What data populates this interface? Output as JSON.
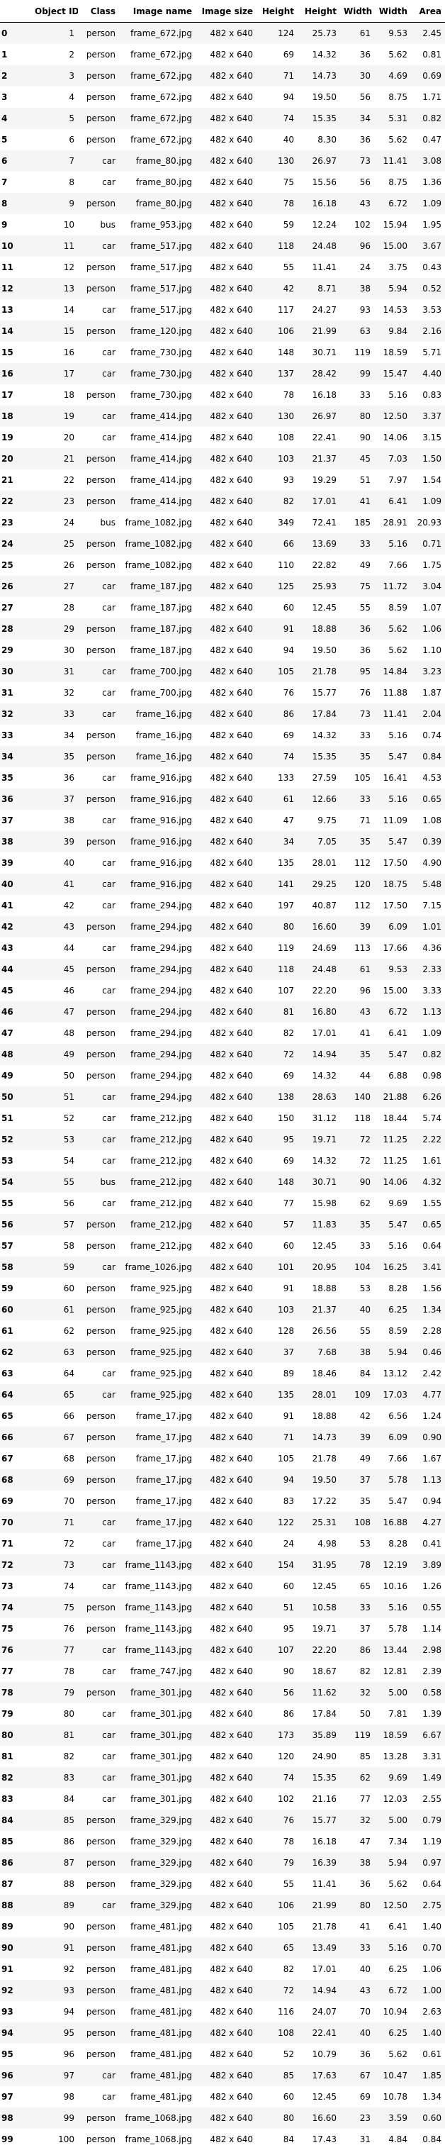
{
  "table": {
    "index_header": "",
    "columns": [
      "Object ID",
      "Class",
      "Image name",
      "Image size",
      "Height",
      "Height",
      "Width",
      "Width",
      "Area"
    ],
    "rows": [
      [
        "0",
        "1",
        "person",
        "frame_672.jpg",
        "482 x 640",
        "124",
        "25.73",
        "61",
        "9.53",
        "2.45"
      ],
      [
        "1",
        "2",
        "person",
        "frame_672.jpg",
        "482 x 640",
        "69",
        "14.32",
        "36",
        "5.62",
        "0.81"
      ],
      [
        "2",
        "3",
        "person",
        "frame_672.jpg",
        "482 x 640",
        "71",
        "14.73",
        "30",
        "4.69",
        "0.69"
      ],
      [
        "3",
        "4",
        "person",
        "frame_672.jpg",
        "482 x 640",
        "94",
        "19.50",
        "56",
        "8.75",
        "1.71"
      ],
      [
        "4",
        "5",
        "person",
        "frame_672.jpg",
        "482 x 640",
        "74",
        "15.35",
        "34",
        "5.31",
        "0.82"
      ],
      [
        "5",
        "6",
        "person",
        "frame_672.jpg",
        "482 x 640",
        "40",
        "8.30",
        "36",
        "5.62",
        "0.47"
      ],
      [
        "6",
        "7",
        "car",
        "frame_80.jpg",
        "482 x 640",
        "130",
        "26.97",
        "73",
        "11.41",
        "3.08"
      ],
      [
        "7",
        "8",
        "car",
        "frame_80.jpg",
        "482 x 640",
        "75",
        "15.56",
        "56",
        "8.75",
        "1.36"
      ],
      [
        "8",
        "9",
        "person",
        "frame_80.jpg",
        "482 x 640",
        "78",
        "16.18",
        "43",
        "6.72",
        "1.09"
      ],
      [
        "9",
        "10",
        "bus",
        "frame_953.jpg",
        "482 x 640",
        "59",
        "12.24",
        "102",
        "15.94",
        "1.95"
      ],
      [
        "10",
        "11",
        "car",
        "frame_517.jpg",
        "482 x 640",
        "118",
        "24.48",
        "96",
        "15.00",
        "3.67"
      ],
      [
        "11",
        "12",
        "person",
        "frame_517.jpg",
        "482 x 640",
        "55",
        "11.41",
        "24",
        "3.75",
        "0.43"
      ],
      [
        "12",
        "13",
        "person",
        "frame_517.jpg",
        "482 x 640",
        "42",
        "8.71",
        "38",
        "5.94",
        "0.52"
      ],
      [
        "13",
        "14",
        "car",
        "frame_517.jpg",
        "482 x 640",
        "117",
        "24.27",
        "93",
        "14.53",
        "3.53"
      ],
      [
        "14",
        "15",
        "person",
        "frame_120.jpg",
        "482 x 640",
        "106",
        "21.99",
        "63",
        "9.84",
        "2.16"
      ],
      [
        "15",
        "16",
        "car",
        "frame_730.jpg",
        "482 x 640",
        "148",
        "30.71",
        "119",
        "18.59",
        "5.71"
      ],
      [
        "16",
        "17",
        "car",
        "frame_730.jpg",
        "482 x 640",
        "137",
        "28.42",
        "99",
        "15.47",
        "4.40"
      ],
      [
        "17",
        "18",
        "person",
        "frame_730.jpg",
        "482 x 640",
        "78",
        "16.18",
        "33",
        "5.16",
        "0.83"
      ],
      [
        "18",
        "19",
        "car",
        "frame_414.jpg",
        "482 x 640",
        "130",
        "26.97",
        "80",
        "12.50",
        "3.37"
      ],
      [
        "19",
        "20",
        "car",
        "frame_414.jpg",
        "482 x 640",
        "108",
        "22.41",
        "90",
        "14.06",
        "3.15"
      ],
      [
        "20",
        "21",
        "person",
        "frame_414.jpg",
        "482 x 640",
        "103",
        "21.37",
        "45",
        "7.03",
        "1.50"
      ],
      [
        "21",
        "22",
        "person",
        "frame_414.jpg",
        "482 x 640",
        "93",
        "19.29",
        "51",
        "7.97",
        "1.54"
      ],
      [
        "22",
        "23",
        "person",
        "frame_414.jpg",
        "482 x 640",
        "82",
        "17.01",
        "41",
        "6.41",
        "1.09"
      ],
      [
        "23",
        "24",
        "bus",
        "frame_1082.jpg",
        "482 x 640",
        "349",
        "72.41",
        "185",
        "28.91",
        "20.93"
      ],
      [
        "24",
        "25",
        "person",
        "frame_1082.jpg",
        "482 x 640",
        "66",
        "13.69",
        "33",
        "5.16",
        "0.71"
      ],
      [
        "25",
        "26",
        "person",
        "frame_1082.jpg",
        "482 x 640",
        "110",
        "22.82",
        "49",
        "7.66",
        "1.75"
      ],
      [
        "26",
        "27",
        "car",
        "frame_187.jpg",
        "482 x 640",
        "125",
        "25.93",
        "75",
        "11.72",
        "3.04"
      ],
      [
        "27",
        "28",
        "car",
        "frame_187.jpg",
        "482 x 640",
        "60",
        "12.45",
        "55",
        "8.59",
        "1.07"
      ],
      [
        "28",
        "29",
        "person",
        "frame_187.jpg",
        "482 x 640",
        "91",
        "18.88",
        "36",
        "5.62",
        "1.06"
      ],
      [
        "29",
        "30",
        "person",
        "frame_187.jpg",
        "482 x 640",
        "94",
        "19.50",
        "36",
        "5.62",
        "1.10"
      ],
      [
        "30",
        "31",
        "car",
        "frame_700.jpg",
        "482 x 640",
        "105",
        "21.78",
        "95",
        "14.84",
        "3.23"
      ],
      [
        "31",
        "32",
        "car",
        "frame_700.jpg",
        "482 x 640",
        "76",
        "15.77",
        "76",
        "11.88",
        "1.87"
      ],
      [
        "32",
        "33",
        "car",
        "frame_16.jpg",
        "482 x 640",
        "86",
        "17.84",
        "73",
        "11.41",
        "2.04"
      ],
      [
        "33",
        "34",
        "person",
        "frame_16.jpg",
        "482 x 640",
        "69",
        "14.32",
        "33",
        "5.16",
        "0.74"
      ],
      [
        "34",
        "35",
        "person",
        "frame_16.jpg",
        "482 x 640",
        "74",
        "15.35",
        "35",
        "5.47",
        "0.84"
      ],
      [
        "35",
        "36",
        "car",
        "frame_916.jpg",
        "482 x 640",
        "133",
        "27.59",
        "105",
        "16.41",
        "4.53"
      ],
      [
        "36",
        "37",
        "person",
        "frame_916.jpg",
        "482 x 640",
        "61",
        "12.66",
        "33",
        "5.16",
        "0.65"
      ],
      [
        "37",
        "38",
        "car",
        "frame_916.jpg",
        "482 x 640",
        "47",
        "9.75",
        "71",
        "11.09",
        "1.08"
      ],
      [
        "38",
        "39",
        "person",
        "frame_916.jpg",
        "482 x 640",
        "34",
        "7.05",
        "35",
        "5.47",
        "0.39"
      ],
      [
        "39",
        "40",
        "car",
        "frame_916.jpg",
        "482 x 640",
        "135",
        "28.01",
        "112",
        "17.50",
        "4.90"
      ],
      [
        "40",
        "41",
        "car",
        "frame_916.jpg",
        "482 x 640",
        "141",
        "29.25",
        "120",
        "18.75",
        "5.48"
      ],
      [
        "41",
        "42",
        "car",
        "frame_294.jpg",
        "482 x 640",
        "197",
        "40.87",
        "112",
        "17.50",
        "7.15"
      ],
      [
        "42",
        "43",
        "person",
        "frame_294.jpg",
        "482 x 640",
        "80",
        "16.60",
        "39",
        "6.09",
        "1.01"
      ],
      [
        "43",
        "44",
        "car",
        "frame_294.jpg",
        "482 x 640",
        "119",
        "24.69",
        "113",
        "17.66",
        "4.36"
      ],
      [
        "44",
        "45",
        "person",
        "frame_294.jpg",
        "482 x 640",
        "118",
        "24.48",
        "61",
        "9.53",
        "2.33"
      ],
      [
        "45",
        "46",
        "car",
        "frame_294.jpg",
        "482 x 640",
        "107",
        "22.20",
        "96",
        "15.00",
        "3.33"
      ],
      [
        "46",
        "47",
        "person",
        "frame_294.jpg",
        "482 x 640",
        "81",
        "16.80",
        "43",
        "6.72",
        "1.13"
      ],
      [
        "47",
        "48",
        "person",
        "frame_294.jpg",
        "482 x 640",
        "82",
        "17.01",
        "41",
        "6.41",
        "1.09"
      ],
      [
        "48",
        "49",
        "person",
        "frame_294.jpg",
        "482 x 640",
        "72",
        "14.94",
        "35",
        "5.47",
        "0.82"
      ],
      [
        "49",
        "50",
        "person",
        "frame_294.jpg",
        "482 x 640",
        "69",
        "14.32",
        "44",
        "6.88",
        "0.98"
      ],
      [
        "50",
        "51",
        "car",
        "frame_294.jpg",
        "482 x 640",
        "138",
        "28.63",
        "140",
        "21.88",
        "6.26"
      ],
      [
        "51",
        "52",
        "car",
        "frame_212.jpg",
        "482 x 640",
        "150",
        "31.12",
        "118",
        "18.44",
        "5.74"
      ],
      [
        "52",
        "53",
        "car",
        "frame_212.jpg",
        "482 x 640",
        "95",
        "19.71",
        "72",
        "11.25",
        "2.22"
      ],
      [
        "53",
        "54",
        "car",
        "frame_212.jpg",
        "482 x 640",
        "69",
        "14.32",
        "72",
        "11.25",
        "1.61"
      ],
      [
        "54",
        "55",
        "bus",
        "frame_212.jpg",
        "482 x 640",
        "148",
        "30.71",
        "90",
        "14.06",
        "4.32"
      ],
      [
        "55",
        "56",
        "car",
        "frame_212.jpg",
        "482 x 640",
        "77",
        "15.98",
        "62",
        "9.69",
        "1.55"
      ],
      [
        "56",
        "57",
        "person",
        "frame_212.jpg",
        "482 x 640",
        "57",
        "11.83",
        "35",
        "5.47",
        "0.65"
      ],
      [
        "57",
        "58",
        "person",
        "frame_212.jpg",
        "482 x 640",
        "60",
        "12.45",
        "33",
        "5.16",
        "0.64"
      ],
      [
        "58",
        "59",
        "car",
        "frame_1026.jpg",
        "482 x 640",
        "101",
        "20.95",
        "104",
        "16.25",
        "3.41"
      ],
      [
        "59",
        "60",
        "person",
        "frame_925.jpg",
        "482 x 640",
        "91",
        "18.88",
        "53",
        "8.28",
        "1.56"
      ],
      [
        "60",
        "61",
        "person",
        "frame_925.jpg",
        "482 x 640",
        "103",
        "21.37",
        "40",
        "6.25",
        "1.34"
      ],
      [
        "61",
        "62",
        "person",
        "frame_925.jpg",
        "482 x 640",
        "128",
        "26.56",
        "55",
        "8.59",
        "2.28"
      ],
      [
        "62",
        "63",
        "person",
        "frame_925.jpg",
        "482 x 640",
        "37",
        "7.68",
        "38",
        "5.94",
        "0.46"
      ],
      [
        "63",
        "64",
        "car",
        "frame_925.jpg",
        "482 x 640",
        "89",
        "18.46",
        "84",
        "13.12",
        "2.42"
      ],
      [
        "64",
        "65",
        "car",
        "frame_925.jpg",
        "482 x 640",
        "135",
        "28.01",
        "109",
        "17.03",
        "4.77"
      ],
      [
        "65",
        "66",
        "person",
        "frame_17.jpg",
        "482 x 640",
        "91",
        "18.88",
        "42",
        "6.56",
        "1.24"
      ],
      [
        "66",
        "67",
        "person",
        "frame_17.jpg",
        "482 x 640",
        "71",
        "14.73",
        "39",
        "6.09",
        "0.90"
      ],
      [
        "67",
        "68",
        "person",
        "frame_17.jpg",
        "482 x 640",
        "105",
        "21.78",
        "49",
        "7.66",
        "1.67"
      ],
      [
        "68",
        "69",
        "person",
        "frame_17.jpg",
        "482 x 640",
        "94",
        "19.50",
        "37",
        "5.78",
        "1.13"
      ],
      [
        "69",
        "70",
        "person",
        "frame_17.jpg",
        "482 x 640",
        "83",
        "17.22",
        "35",
        "5.47",
        "0.94"
      ],
      [
        "70",
        "71",
        "car",
        "frame_17.jpg",
        "482 x 640",
        "122",
        "25.31",
        "108",
        "16.88",
        "4.27"
      ],
      [
        "71",
        "72",
        "car",
        "frame_17.jpg",
        "482 x 640",
        "24",
        "4.98",
        "53",
        "8.28",
        "0.41"
      ],
      [
        "72",
        "73",
        "car",
        "frame_1143.jpg",
        "482 x 640",
        "154",
        "31.95",
        "78",
        "12.19",
        "3.89"
      ],
      [
        "73",
        "74",
        "car",
        "frame_1143.jpg",
        "482 x 640",
        "60",
        "12.45",
        "65",
        "10.16",
        "1.26"
      ],
      [
        "74",
        "75",
        "person",
        "frame_1143.jpg",
        "482 x 640",
        "51",
        "10.58",
        "33",
        "5.16",
        "0.55"
      ],
      [
        "75",
        "76",
        "person",
        "frame_1143.jpg",
        "482 x 640",
        "95",
        "19.71",
        "37",
        "5.78",
        "1.14"
      ],
      [
        "76",
        "77",
        "car",
        "frame_1143.jpg",
        "482 x 640",
        "107",
        "22.20",
        "86",
        "13.44",
        "2.98"
      ],
      [
        "77",
        "78",
        "car",
        "frame_747.jpg",
        "482 x 640",
        "90",
        "18.67",
        "82",
        "12.81",
        "2.39"
      ],
      [
        "78",
        "79",
        "person",
        "frame_301.jpg",
        "482 x 640",
        "56",
        "11.62",
        "32",
        "5.00",
        "0.58"
      ],
      [
        "79",
        "80",
        "car",
        "frame_301.jpg",
        "482 x 640",
        "86",
        "17.84",
        "50",
        "7.81",
        "1.39"
      ],
      [
        "80",
        "81",
        "car",
        "frame_301.jpg",
        "482 x 640",
        "173",
        "35.89",
        "119",
        "18.59",
        "6.67"
      ],
      [
        "81",
        "82",
        "car",
        "frame_301.jpg",
        "482 x 640",
        "120",
        "24.90",
        "85",
        "13.28",
        "3.31"
      ],
      [
        "82",
        "83",
        "car",
        "frame_301.jpg",
        "482 x 640",
        "74",
        "15.35",
        "62",
        "9.69",
        "1.49"
      ],
      [
        "83",
        "84",
        "car",
        "frame_301.jpg",
        "482 x 640",
        "102",
        "21.16",
        "77",
        "12.03",
        "2.55"
      ],
      [
        "84",
        "85",
        "person",
        "frame_329.jpg",
        "482 x 640",
        "76",
        "15.77",
        "32",
        "5.00",
        "0.79"
      ],
      [
        "85",
        "86",
        "person",
        "frame_329.jpg",
        "482 x 640",
        "78",
        "16.18",
        "47",
        "7.34",
        "1.19"
      ],
      [
        "86",
        "87",
        "person",
        "frame_329.jpg",
        "482 x 640",
        "79",
        "16.39",
        "38",
        "5.94",
        "0.97"
      ],
      [
        "87",
        "88",
        "person",
        "frame_329.jpg",
        "482 x 640",
        "55",
        "11.41",
        "36",
        "5.62",
        "0.64"
      ],
      [
        "88",
        "89",
        "car",
        "frame_329.jpg",
        "482 x 640",
        "106",
        "21.99",
        "80",
        "12.50",
        "2.75"
      ],
      [
        "89",
        "90",
        "person",
        "frame_481.jpg",
        "482 x 640",
        "105",
        "21.78",
        "41",
        "6.41",
        "1.40"
      ],
      [
        "90",
        "91",
        "person",
        "frame_481.jpg",
        "482 x 640",
        "65",
        "13.49",
        "33",
        "5.16",
        "0.70"
      ],
      [
        "91",
        "92",
        "person",
        "frame_481.jpg",
        "482 x 640",
        "82",
        "17.01",
        "40",
        "6.25",
        "1.06"
      ],
      [
        "92",
        "93",
        "person",
        "frame_481.jpg",
        "482 x 640",
        "72",
        "14.94",
        "43",
        "6.72",
        "1.00"
      ],
      [
        "93",
        "94",
        "person",
        "frame_481.jpg",
        "482 x 640",
        "116",
        "24.07",
        "70",
        "10.94",
        "2.63"
      ],
      [
        "94",
        "95",
        "person",
        "frame_481.jpg",
        "482 x 640",
        "108",
        "22.41",
        "40",
        "6.25",
        "1.40"
      ],
      [
        "95",
        "96",
        "person",
        "frame_481.jpg",
        "482 x 640",
        "52",
        "10.79",
        "36",
        "5.62",
        "0.61"
      ],
      [
        "96",
        "97",
        "car",
        "frame_481.jpg",
        "482 x 640",
        "85",
        "17.63",
        "67",
        "10.47",
        "1.85"
      ],
      [
        "97",
        "98",
        "car",
        "frame_481.jpg",
        "482 x 640",
        "60",
        "12.45",
        "69",
        "10.78",
        "1.34"
      ],
      [
        "98",
        "99",
        "person",
        "frame_1068.jpg",
        "482 x 640",
        "80",
        "16.60",
        "23",
        "3.59",
        "0.60"
      ],
      [
        "99",
        "100",
        "person",
        "frame_1068.jpg",
        "482 x 640",
        "84",
        "17.43",
        "31",
        "4.84",
        "0.84"
      ]
    ]
  }
}
